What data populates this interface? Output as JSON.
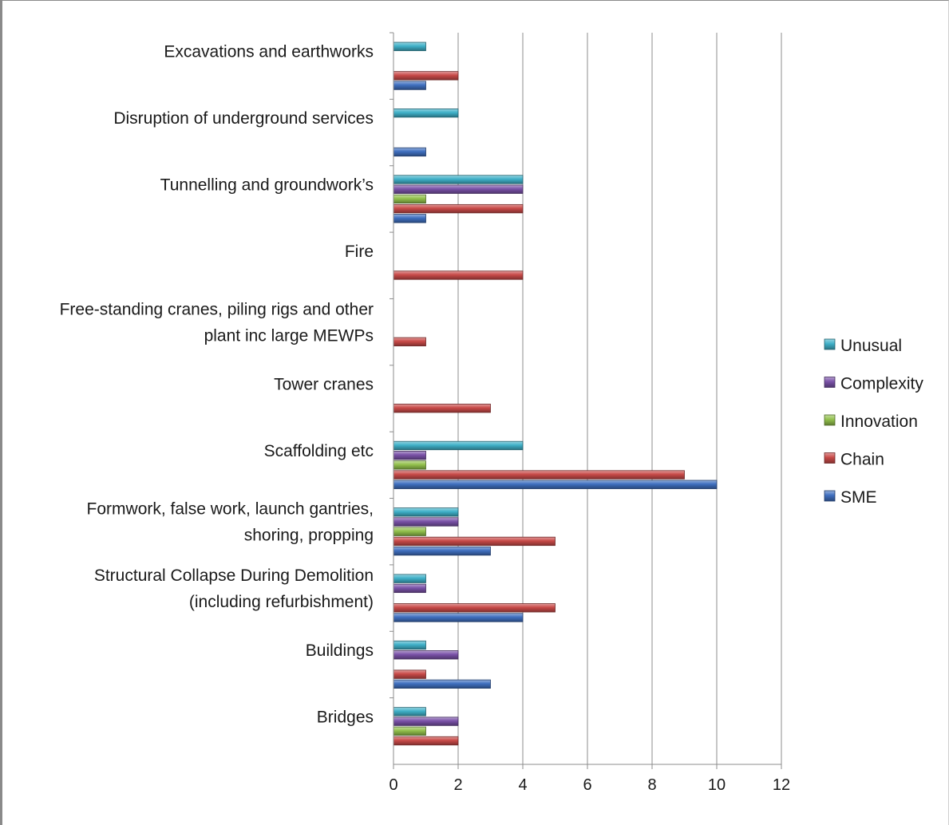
{
  "chart_data": {
    "type": "bar",
    "orientation": "horizontal",
    "title": "",
    "xlabel": "",
    "ylabel": "",
    "xlim": [
      0,
      12
    ],
    "x_ticks": [
      0,
      2,
      4,
      6,
      8,
      10,
      12
    ],
    "grid": "vertical",
    "legend_position": "right",
    "categories": [
      {
        "lines": [
          "Excavations and earthworks"
        ]
      },
      {
        "lines": [
          "Disruption of underground services"
        ]
      },
      {
        "lines": [
          "Tunnelling and groundwork’s"
        ]
      },
      {
        "lines": [
          "Fire"
        ]
      },
      {
        "lines": [
          "Free-standing cranes, piling rigs and other",
          "plant inc large MEWPs"
        ]
      },
      {
        "lines": [
          "Tower cranes"
        ]
      },
      {
        "lines": [
          "Scaffolding etc"
        ]
      },
      {
        "lines": [
          "Formwork, false work, launch gantries,",
          "shoring, propping"
        ]
      },
      {
        "lines": [
          "Structural Collapse During Demolition",
          "(including  refurbishment)"
        ]
      },
      {
        "lines": [
          "Buildings"
        ]
      },
      {
        "lines": [
          "Bridges"
        ]
      }
    ],
    "series": [
      {
        "name": "Unusual",
        "color": "#3fb0c8",
        "values": [
          1,
          2,
          4,
          0,
          0,
          0,
          4,
          2,
          1,
          1,
          1
        ]
      },
      {
        "name": "Complexity",
        "color": "#7a52a8",
        "values": [
          0,
          0,
          4,
          0,
          0,
          0,
          1,
          2,
          1,
          2,
          2
        ]
      },
      {
        "name": "Innovation",
        "color": "#92c04c",
        "values": [
          0,
          0,
          1,
          0,
          0,
          0,
          1,
          1,
          0,
          0,
          1
        ]
      },
      {
        "name": "Chain",
        "color": "#c84a48",
        "values": [
          2,
          0,
          4,
          4,
          1,
          3,
          9,
          5,
          5,
          1,
          2
        ]
      },
      {
        "name": "SME",
        "color": "#3f6fbf",
        "values": [
          1,
          1,
          1,
          0,
          0,
          0,
          10,
          3,
          4,
          3,
          0
        ]
      }
    ]
  }
}
